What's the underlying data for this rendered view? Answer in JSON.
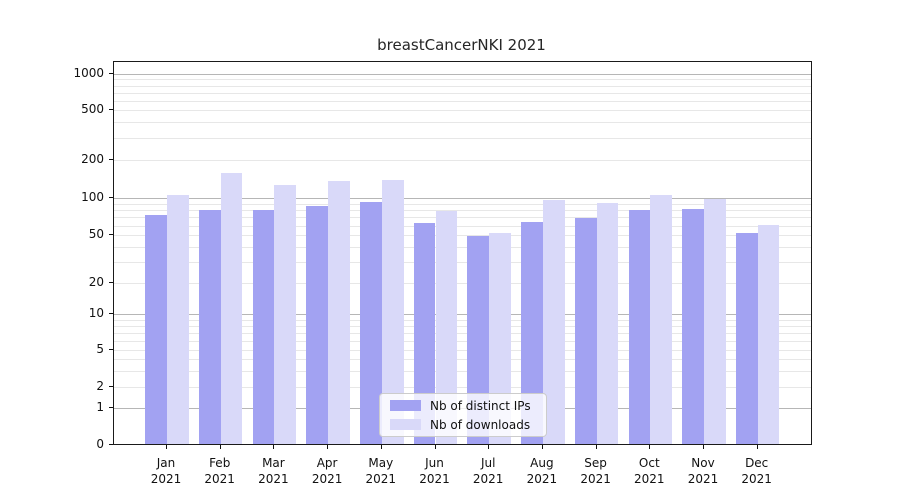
{
  "title": "breastCancerNKI 2021",
  "chart_data": {
    "type": "bar",
    "title": "breastCancerNKI 2021",
    "categories": [
      "Jan 2021",
      "Feb 2021",
      "Mar 2021",
      "Apr 2021",
      "May 2021",
      "Jun 2021",
      "Jul 2021",
      "Aug 2021",
      "Sep 2021",
      "Oct 2021",
      "Nov 2021",
      "Dec 2021"
    ],
    "months": [
      "Jan",
      "Feb",
      "Mar",
      "Apr",
      "May",
      "Jun",
      "Jul",
      "Aug",
      "Sep",
      "Oct",
      "Nov",
      "Dec"
    ],
    "year_label": "2021",
    "series": [
      {
        "name": "Nb of distinct IPs",
        "color": "#a2a2f2",
        "values": [
          72,
          79,
          79,
          85,
          93,
          62,
          49,
          64,
          69,
          80,
          81,
          52
        ]
      },
      {
        "name": "Nb of downloads",
        "color": "#d9d9f9",
        "values": [
          105,
          158,
          126,
          135,
          139,
          78,
          52,
          96,
          90,
          105,
          98,
          60
        ]
      }
    ],
    "xlabel": "",
    "ylabel": "",
    "yscale": "symlog",
    "y_ticks": [
      0,
      1,
      2,
      5,
      10,
      20,
      50,
      100,
      200,
      500,
      1000
    ],
    "ylim": [
      0,
      1500
    ],
    "grid": true,
    "legend_position": "lower center",
    "colors": {
      "bar_dark": "#a2a2f2",
      "bar_light": "#d9d9f9",
      "grid_minor": "#e7e7e7",
      "grid_major": "#b6b6b6",
      "axis": "#1a1a1a"
    }
  }
}
